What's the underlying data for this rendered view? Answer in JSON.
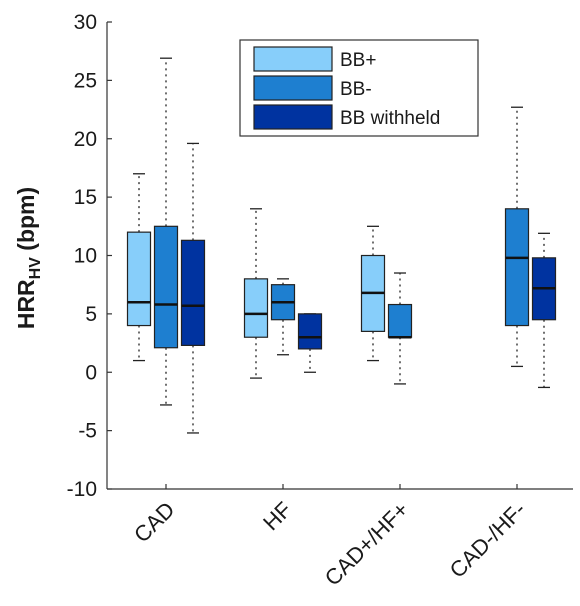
{
  "chart_data": {
    "type": "boxplot",
    "title": "",
    "xlabel": "",
    "ylabel": "HRR",
    "ylabel_sub": "HV",
    "ylabel_unit": " (bpm)",
    "ylim": [
      -10,
      30
    ],
    "yticks": [
      -10,
      -5,
      0,
      5,
      10,
      15,
      20,
      25,
      30
    ],
    "categories": [
      "CAD",
      "HF",
      "CAD+/HF+",
      "CAD-/HF-"
    ],
    "legend_position": "top-right",
    "series": [
      {
        "name": "BB+",
        "color": "#87CEFA",
        "boxes": [
          {
            "category": "CAD",
            "min": 1.0,
            "q1": 4.0,
            "median": 6.0,
            "q3": 12.0,
            "max": 17.0
          },
          {
            "category": "HF",
            "min": -0.5,
            "q1": 3.0,
            "median": 5.0,
            "q3": 8.0,
            "max": 14.0
          },
          {
            "category": "CAD+/HF+",
            "min": 1.0,
            "q1": 3.5,
            "median": 6.8,
            "q3": 10.0,
            "max": 12.5
          },
          null
        ]
      },
      {
        "name": "BB-",
        "color": "#1E7FD0",
        "boxes": [
          {
            "category": "CAD",
            "min": -2.8,
            "q1": 2.1,
            "median": 5.8,
            "q3": 12.5,
            "max": 26.9
          },
          {
            "category": "HF",
            "min": 1.5,
            "q1": 4.5,
            "median": 6.0,
            "q3": 7.5,
            "max": 8.0
          },
          {
            "category": "CAD+/HF+",
            "min": -1.0,
            "q1": 3.0,
            "median": 3.0,
            "q3": 5.8,
            "max": 8.5
          },
          {
            "category": "CAD-/HF-",
            "min": 0.5,
            "q1": 4.0,
            "median": 9.8,
            "q3": 14.0,
            "max": 22.7
          }
        ]
      },
      {
        "name": "BB withheld",
        "color": "#0033A0",
        "boxes": [
          {
            "category": "CAD",
            "min": -5.2,
            "q1": 2.3,
            "median": 5.7,
            "q3": 11.3,
            "max": 19.6
          },
          {
            "category": "HF",
            "min": 0.0,
            "q1": 2.0,
            "median": 3.0,
            "q3": 5.0,
            "max": 5.0
          },
          null,
          {
            "category": "CAD-/HF-",
            "min": -1.3,
            "q1": 4.5,
            "median": 7.2,
            "q3": 9.8,
            "max": 11.9
          }
        ]
      }
    ]
  }
}
